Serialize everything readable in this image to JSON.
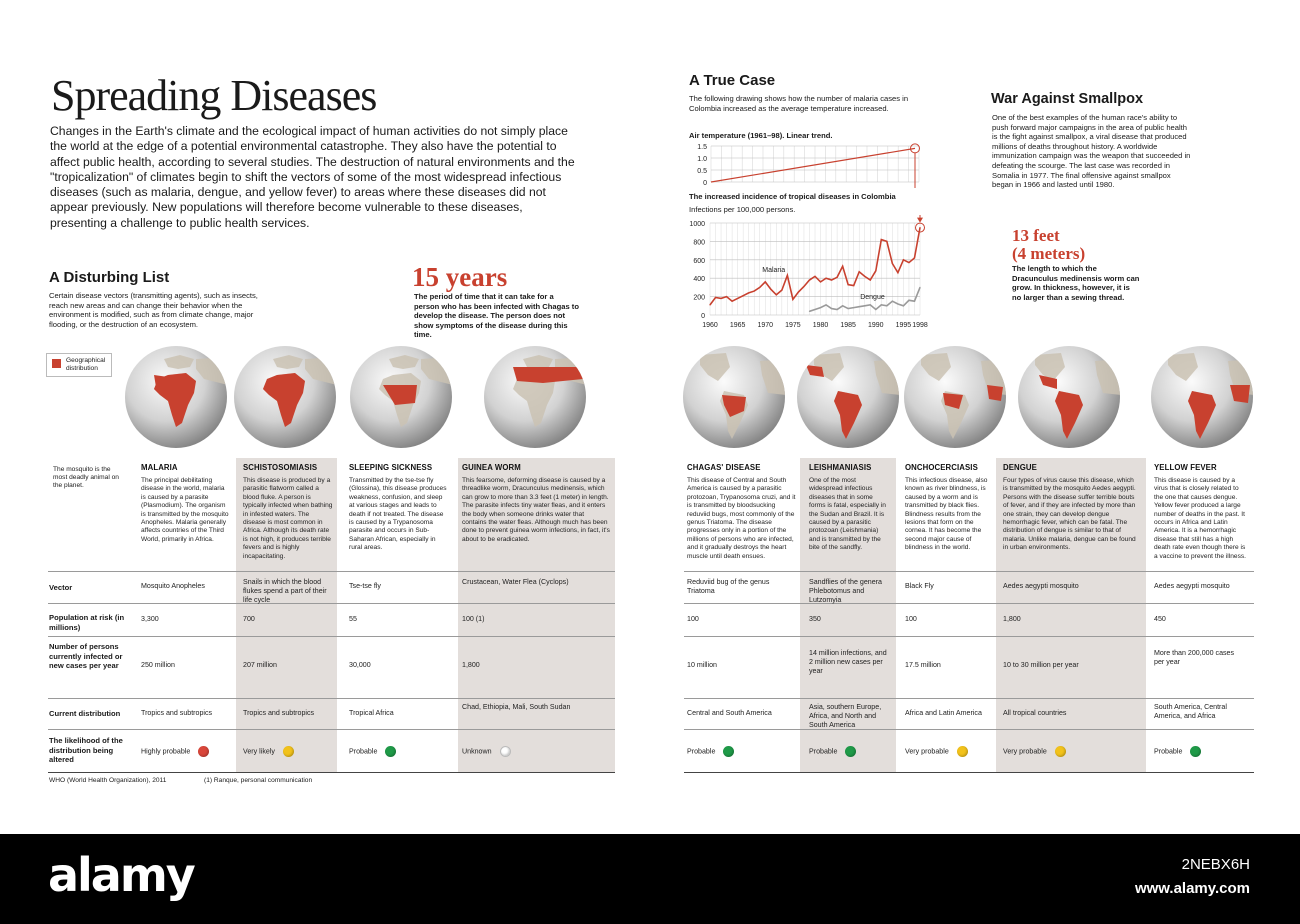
{
  "title": "Spreading Diseases",
  "intro": "Changes in the Earth's climate and the ecological impact of human activities do not simply place the world at the edge of a potential environmental catastrophe. They also have the potential to affect public health, according to several studies. The destruction of natural environments and the \"tropicalization\" of climates begin to shift the vectors of some of the most widespread infectious diseases (such as malaria, dengue, and yellow fever) to areas where these diseases did not appear previously. New populations will therefore become vulnerable to these diseases, presenting a challenge to public health services.",
  "disturbing_list": {
    "heading": "A Disturbing List",
    "text": "Certain disease vectors (transmitting agents), such as insects, reach new areas and can change their behavior when the environment is modified, such as from climate change, major flooding, or the destruction of an ecosystem."
  },
  "fifteen_years": {
    "big": "15 years",
    "text": "The period of time that it can take for a person who has been infected with Chagas to develop the disease. The person does not show symptoms of the disease during this time."
  },
  "true_case": {
    "heading": "A True Case",
    "text": "The following drawing shows how the number of malaria cases in Colombia increased as the average temperature increased."
  },
  "smallpox": {
    "heading": "War Against Smallpox",
    "text": "One of the best examples of the human race's ability to push forward major campaigns in the area of public health is the fight against smallpox, a viral disease that produced millions of deaths throughout history. A worldwide immunization campaign was the weapon that succeeded in defeating the scourge. The last case was recorded in Somalia in 1977. The final offensive against smallpox began in 1966 and lasted until 1980."
  },
  "thirteen_feet": {
    "big1": "13 feet",
    "big2": "(4 meters)",
    "text": "The length to which the Dracunculus medinensis worm can grow. In thickness, however, it is no larger than a sewing thread."
  },
  "legend": {
    "label": "Geographical distribution",
    "color": "#c8412f"
  },
  "mosquito_note": "The mosquito is the most deadly animal on the planet.",
  "row_labels": {
    "vector": "Vector",
    "population": "Population at risk (in millions)",
    "persons": "Number of persons currently infected or new cases per year",
    "distribution": "Current distribution",
    "likelihood": "The likelihood of the distribution being altered"
  },
  "source": "WHO (World Health Organization), 2011",
  "footnote": "(1) Ranque, personal communication",
  "status_colors": {
    "red": "#d9463a",
    "yellow": "#f2c21b",
    "green": "#1f9a48",
    "white": "#ffffff"
  },
  "diseases_left": [
    {
      "name": "MALARIA",
      "desc": "The principal debilitating disease in the world, malaria is caused by a parasite (Plasmodium). The organism is transmitted by the mosquito Anopheles. Malaria generally affects countries of the Third World, primarily in Africa.",
      "vector": "Mosquito Anopheles",
      "population": "3,300",
      "persons": "250 million",
      "distribution": "Tropics and subtropics",
      "likelihood": "Highly probable",
      "status": "red"
    },
    {
      "name": "SCHISTOSOMIASIS",
      "desc": "This disease is produced by a parasitic flatworm called a blood fluke. A person is typically infected when bathing in infested waters. The disease is most common in Africa. Although its death rate is not high, it produces terrible fevers and is highly incapacitating.",
      "vector": "Snails in which the blood flukes spend a part of their life cycle",
      "population": "700",
      "persons": "207 million",
      "distribution": "Tropics and subtropics",
      "likelihood": "Very likely",
      "status": "yellow"
    },
    {
      "name": "SLEEPING SICKNESS",
      "desc": "Transmitted by the tse-tse fly (Glossina), this disease produces weakness, confusion, and sleep at various stages and leads to death if not treated. The disease is caused by a Trypanosoma parasite and occurs in Sub-Saharan African, especially in rural areas.",
      "vector": "Tse-tse fly",
      "population": "55",
      "persons": "30,000",
      "distribution": "Tropical Africa",
      "likelihood": "Probable",
      "status": "green"
    },
    {
      "name": "GUINEA WORM",
      "desc": "This fearsome, deforming disease is caused by a threadlike worm, Dracunculus medinensis, which can grow to more than 3.3 feet (1 meter) in length. The parasite infects tiny water fleas, and it enters the body when someone drinks water that contains the water fleas. Although much has been done to prevent guinea worm infections, in fact, it's about to be eradicated.",
      "vector": "Crustacean, Water Flea (Cyclops)",
      "population": "100 (1)",
      "persons": "1,800",
      "distribution": "Chad, Ethiopia, Mali, South Sudan",
      "likelihood": "Unknown",
      "status": "white"
    }
  ],
  "diseases_right": [
    {
      "name": "CHAGAS' DISEASE",
      "desc": "This disease of Central and South America is caused by a parasitic protozoan, Trypanosoma cruzi, and it is transmitted by bloodsucking reduviid bugs, most commonly of the genus Triatoma. The disease progresses only in a portion of the millions of persons who are infected, and it gradually destroys the heart muscle until death ensues.",
      "vector": "Reduviid bug of the genus Triatoma",
      "population": "100",
      "persons": "10 million",
      "distribution": "Central and South America",
      "likelihood": "Probable",
      "status": "green"
    },
    {
      "name": "LEISHMANIASIS",
      "desc": "One of the most widespread infectious diseases that in some forms is fatal, especially in the Sudan and Brazil. It is caused by a parasitic protozoan (Leishmania) and is transmitted by the bite of the sandfly.",
      "vector": "Sandflies of the genera Phlebotomus and Lutzomyia",
      "population": "350",
      "persons": "14 million infections, and 2 million new cases per year",
      "distribution": "Asia, southern Europe, Africa, and North and South America",
      "likelihood": "Probable",
      "status": "green"
    },
    {
      "name": "ONCHOCERCIASIS",
      "desc": "This infectious disease, also known as river blindness, is caused by a worm and is transmitted by black flies. Blindness results from the lesions that form on the cornea. It has become the second major cause of blindness in the world.",
      "vector": "Black Fly",
      "population": "100",
      "persons": "17.5 million",
      "distribution": "Africa and Latin America",
      "likelihood": "Very probable",
      "status": "yellow"
    },
    {
      "name": "DENGUE",
      "desc": "Four types of virus cause this disease, which is transmitted by the mosquito Aedes aegypti. Persons with the disease suffer terrible bouts of fever, and if they are infected by more than one strain, they can develop dengue hemorrhagic fever, which can be fatal. The distribution of dengue is similar to that of malaria. Unlike malaria, dengue can be found in urban environments.",
      "vector": "Aedes aegypti mosquito",
      "population": "1,800",
      "persons": "10 to 30 million per year",
      "distribution": "All tropical countries",
      "likelihood": "Very probable",
      "status": "yellow"
    },
    {
      "name": "YELLOW FEVER",
      "desc": "This disease is caused by a virus that is closely related to the one that causes dengue. Yellow fever produced a large number of deaths in the past. It occurs in Africa and Latin America. It is a hemorrhagic disease that still has a high death rate even though there is a vaccine to prevent the illness.",
      "vector": "Aedes aegypti mosquito",
      "population": "450",
      "persons": "More than 200,000 cases per year",
      "distribution": "South America, Central America, and Africa",
      "likelihood": "Probable",
      "status": "green"
    }
  ],
  "watermark": {
    "logo": "alamy",
    "id": "2NEBX6H",
    "url": "www.alamy.com"
  },
  "chart_data": [
    {
      "type": "line",
      "title": "Air temperature (1961–98). Linear trend.",
      "x": [
        1961,
        1998
      ],
      "series": [
        {
          "values": [
            0,
            1.4
          ]
        }
      ],
      "yticks": [
        "1.5",
        "1.0",
        "0.5",
        "0"
      ],
      "ylim": [
        0,
        1.5
      ],
      "color": "#c8412f"
    },
    {
      "type": "line",
      "title": "The increased incidence of tropical diseases in Colombia",
      "subtitle": "Infections per 100,000 persons.",
      "xticks": [
        "1960",
        "1965",
        "1970",
        "1975",
        "1980",
        "1985",
        "1990",
        "1995",
        "1998"
      ],
      "yticks": [
        "1000",
        "800",
        "600",
        "400",
        "200",
        "0"
      ],
      "xlim": [
        1960,
        1998
      ],
      "ylim": [
        0,
        1000
      ],
      "series": [
        {
          "name": "Malaria",
          "color": "#c8412f",
          "x": [
            1960,
            1961,
            1962,
            1963,
            1964,
            1965,
            1966,
            1967,
            1968,
            1969,
            1970,
            1971,
            1972,
            1973,
            1974,
            1975,
            1976,
            1977,
            1978,
            1979,
            1980,
            1981,
            1982,
            1983,
            1984,
            1985,
            1986,
            1987,
            1988,
            1989,
            1990,
            1991,
            1992,
            1993,
            1994,
            1995,
            1996,
            1997,
            1998
          ],
          "values": [
            110,
            190,
            180,
            200,
            150,
            180,
            210,
            240,
            260,
            300,
            360,
            280,
            220,
            270,
            430,
            170,
            250,
            310,
            380,
            420,
            360,
            400,
            380,
            410,
            530,
            330,
            320,
            470,
            420,
            380,
            480,
            820,
            800,
            560,
            460,
            600,
            570,
            620,
            950
          ]
        },
        {
          "name": "Dengue",
          "color": "#9a9a9a",
          "x": [
            1978,
            1979,
            1980,
            1981,
            1982,
            1983,
            1984,
            1985,
            1986,
            1987,
            1988,
            1989,
            1990,
            1991,
            1992,
            1993,
            1994,
            1995,
            1996,
            1997,
            1998
          ],
          "values": [
            40,
            60,
            80,
            110,
            70,
            60,
            100,
            70,
            80,
            90,
            100,
            110,
            60,
            110,
            100,
            150,
            120,
            100,
            160,
            150,
            300
          ]
        }
      ]
    }
  ]
}
